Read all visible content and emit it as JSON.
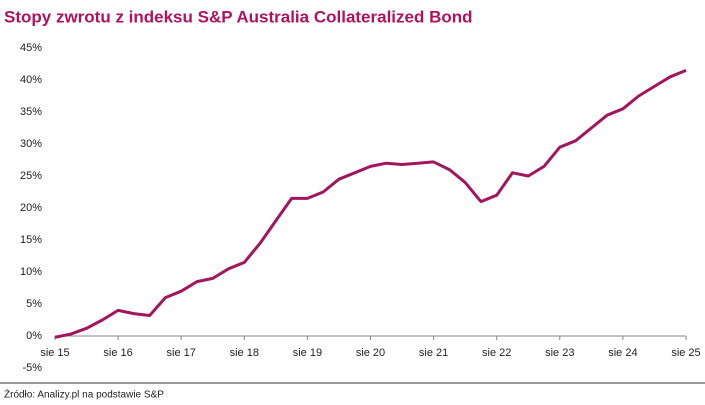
{
  "chart_data": {
    "type": "line",
    "title": "Stopy zwrotu z indeksu S&P Australia Collateralized Bond",
    "source": "Źródło: Analizy.pl na podstawie S&P",
    "categories": [
      "sie 15",
      null,
      null,
      null,
      "sie 16",
      null,
      null,
      null,
      "sie 17",
      null,
      null,
      null,
      "sie 18",
      null,
      null,
      null,
      "sie 19",
      null,
      null,
      null,
      "sie 20",
      null,
      null,
      null,
      "sie 21",
      null,
      null,
      null,
      "sie 22",
      null,
      null,
      null,
      "sie 23",
      null,
      null,
      null,
      "sie 24",
      null,
      null,
      null,
      "sie 25"
    ],
    "values": [
      -0.2,
      0.3,
      1.2,
      2.5,
      4.0,
      3.5,
      3.2,
      6.0,
      7.0,
      8.5,
      9.0,
      10.5,
      11.5,
      14.5,
      18.0,
      21.5,
      21.5,
      22.5,
      24.5,
      25.5,
      26.5,
      27.0,
      26.8,
      27.0,
      27.2,
      26.0,
      24.0,
      21.0,
      22.0,
      25.5,
      25.0,
      26.5,
      29.5,
      30.5,
      32.5,
      34.5,
      35.5,
      37.5,
      39.0,
      40.5,
      41.5
    ],
    "color": "#a3155d",
    "ylim": [
      -5,
      45
    ],
    "yticks": [
      {
        "value": -5,
        "label": "-5%"
      },
      {
        "value": 0,
        "label": "0%"
      },
      {
        "value": 5,
        "label": "5%"
      },
      {
        "value": 10,
        "label": "10%"
      },
      {
        "value": 15,
        "label": "15%"
      },
      {
        "value": 20,
        "label": "20%"
      },
      {
        "value": 25,
        "label": "25%"
      },
      {
        "value": 30,
        "label": "30%"
      },
      {
        "value": 35,
        "label": "35%"
      },
      {
        "value": 40,
        "label": "40%"
      },
      {
        "value": 45,
        "label": "45%"
      }
    ]
  }
}
